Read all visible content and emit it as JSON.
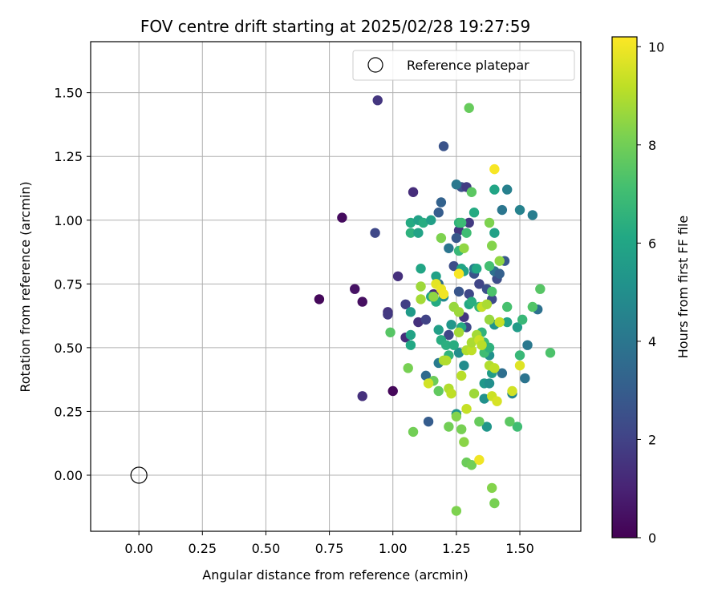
{
  "chart_data": {
    "type": "scatter",
    "title": "FOV centre drift starting at 2025/02/28 19:27:59",
    "xlabel": "Angular distance from reference (arcmin)",
    "ylabel": "Rotation from reference (arcmin)",
    "xlim": [
      -0.19,
      1.74
    ],
    "ylim": [
      -0.22,
      1.7
    ],
    "xticks": [
      "0.00",
      "0.25",
      "0.50",
      "0.75",
      "1.00",
      "1.25",
      "1.50"
    ],
    "yticks": [
      "0.00",
      "0.25",
      "0.50",
      "0.75",
      "1.00",
      "1.25",
      "1.50"
    ],
    "grid": true,
    "colormap": "viridis",
    "colorbar": {
      "label": "Hours from first FF file",
      "range": [
        0,
        10.2
      ],
      "ticks": [
        "0",
        "2",
        "4",
        "6",
        "8",
        "10"
      ]
    },
    "legend": {
      "position": "top-right",
      "entries": [
        "Reference platepar"
      ]
    },
    "reference": {
      "x": 0.0,
      "y": 0.0
    },
    "points": [
      {
        "x": 0.71,
        "y": 0.69,
        "c": 0.2
      },
      {
        "x": 0.8,
        "y": 1.01,
        "c": 0.3
      },
      {
        "x": 0.85,
        "y": 0.73,
        "c": 0.5
      },
      {
        "x": 0.88,
        "y": 0.68,
        "c": 0.4
      },
      {
        "x": 0.88,
        "y": 0.31,
        "c": 1.4
      },
      {
        "x": 1.0,
        "y": 0.33,
        "c": 0.2
      },
      {
        "x": 0.93,
        "y": 0.95,
        "c": 2.2
      },
      {
        "x": 0.94,
        "y": 1.47,
        "c": 1.6
      },
      {
        "x": 0.98,
        "y": 0.64,
        "c": 1.5
      },
      {
        "x": 0.98,
        "y": 0.63,
        "c": 1.7
      },
      {
        "x": 1.02,
        "y": 0.78,
        "c": 1.4
      },
      {
        "x": 1.05,
        "y": 0.54,
        "c": 1.3
      },
      {
        "x": 1.05,
        "y": 0.67,
        "c": 1.9
      },
      {
        "x": 1.08,
        "y": 1.11,
        "c": 1.3
      },
      {
        "x": 1.1,
        "y": 0.6,
        "c": 1.4
      },
      {
        "x": 1.13,
        "y": 0.61,
        "c": 2.0
      },
      {
        "x": 1.16,
        "y": 0.71,
        "c": 1.2
      },
      {
        "x": 1.2,
        "y": 1.29,
        "c": 2.6
      },
      {
        "x": 1.22,
        "y": 0.55,
        "c": 2.1
      },
      {
        "x": 1.24,
        "y": 0.82,
        "c": 2.4
      },
      {
        "x": 1.26,
        "y": 0.96,
        "c": 1.6
      },
      {
        "x": 1.27,
        "y": 1.13,
        "c": 2.5
      },
      {
        "x": 1.29,
        "y": 1.13,
        "c": 1.8
      },
      {
        "x": 1.3,
        "y": 0.99,
        "c": 1.7
      },
      {
        "x": 1.25,
        "y": 0.93,
        "c": 2.8
      },
      {
        "x": 1.26,
        "y": 0.72,
        "c": 2.7
      },
      {
        "x": 1.29,
        "y": 0.58,
        "c": 2.3
      },
      {
        "x": 1.28,
        "y": 0.62,
        "c": 1.6
      },
      {
        "x": 1.3,
        "y": 0.71,
        "c": 2.2
      },
      {
        "x": 1.32,
        "y": 0.79,
        "c": 2.6
      },
      {
        "x": 1.34,
        "y": 0.75,
        "c": 2.1
      },
      {
        "x": 1.37,
        "y": 0.73,
        "c": 2.5
      },
      {
        "x": 1.39,
        "y": 0.69,
        "c": 2.3
      },
      {
        "x": 1.41,
        "y": 0.77,
        "c": 2.4
      },
      {
        "x": 1.44,
        "y": 0.84,
        "c": 2.8
      },
      {
        "x": 1.14,
        "y": 0.21,
        "c": 3.0
      },
      {
        "x": 1.19,
        "y": 1.07,
        "c": 3.2
      },
      {
        "x": 1.18,
        "y": 1.03,
        "c": 3.0
      },
      {
        "x": 1.18,
        "y": 0.75,
        "c": 3.6
      },
      {
        "x": 1.22,
        "y": 0.89,
        "c": 4.0
      },
      {
        "x": 1.25,
        "y": 1.14,
        "c": 4.1
      },
      {
        "x": 1.32,
        "y": 0.81,
        "c": 4.2
      },
      {
        "x": 1.4,
        "y": 0.8,
        "c": 3.8
      },
      {
        "x": 1.42,
        "y": 0.79,
        "c": 3.1
      },
      {
        "x": 1.43,
        "y": 1.04,
        "c": 4.0
      },
      {
        "x": 1.45,
        "y": 1.12,
        "c": 4.4
      },
      {
        "x": 1.43,
        "y": 0.4,
        "c": 3.7
      },
      {
        "x": 1.47,
        "y": 0.32,
        "c": 4.6
      },
      {
        "x": 1.5,
        "y": 1.04,
        "c": 4.5
      },
      {
        "x": 1.53,
        "y": 0.51,
        "c": 4.1
      },
      {
        "x": 1.52,
        "y": 0.38,
        "c": 3.9
      },
      {
        "x": 1.55,
        "y": 1.02,
        "c": 4.3
      },
      {
        "x": 1.57,
        "y": 0.65,
        "c": 3.8
      },
      {
        "x": 1.13,
        "y": 0.39,
        "c": 3.5
      },
      {
        "x": 1.18,
        "y": 0.44,
        "c": 4.2
      },
      {
        "x": 1.2,
        "y": 0.7,
        "c": 4.8
      },
      {
        "x": 1.23,
        "y": 0.59,
        "c": 5.3
      },
      {
        "x": 1.26,
        "y": 0.48,
        "c": 5.0
      },
      {
        "x": 1.28,
        "y": 0.43,
        "c": 4.9
      },
      {
        "x": 1.25,
        "y": 0.24,
        "c": 5.2
      },
      {
        "x": 1.36,
        "y": 0.36,
        "c": 5.4
      },
      {
        "x": 1.38,
        "y": 0.36,
        "c": 5.0
      },
      {
        "x": 1.36,
        "y": 0.3,
        "c": 5.1
      },
      {
        "x": 1.37,
        "y": 0.19,
        "c": 5.3
      },
      {
        "x": 1.39,
        "y": 0.4,
        "c": 5.6
      },
      {
        "x": 1.38,
        "y": 0.47,
        "c": 5.1
      },
      {
        "x": 1.4,
        "y": 0.59,
        "c": 5.2
      },
      {
        "x": 1.4,
        "y": 0.95,
        "c": 5.8
      },
      {
        "x": 1.4,
        "y": 1.12,
        "c": 6.0
      },
      {
        "x": 1.45,
        "y": 0.6,
        "c": 5.9
      },
      {
        "x": 1.49,
        "y": 0.58,
        "c": 5.6
      },
      {
        "x": 1.5,
        "y": 0.47,
        "c": 6.8
      },
      {
        "x": 1.07,
        "y": 0.99,
        "c": 6.2
      },
      {
        "x": 1.07,
        "y": 0.95,
        "c": 6.5
      },
      {
        "x": 1.1,
        "y": 1.0,
        "c": 5.8
      },
      {
        "x": 1.1,
        "y": 0.95,
        "c": 5.9
      },
      {
        "x": 1.11,
        "y": 0.81,
        "c": 6.0
      },
      {
        "x": 1.12,
        "y": 0.99,
        "c": 6.3
      },
      {
        "x": 1.15,
        "y": 1.0,
        "c": 5.7
      },
      {
        "x": 1.07,
        "y": 0.64,
        "c": 5.5
      },
      {
        "x": 1.07,
        "y": 0.55,
        "c": 5.9
      },
      {
        "x": 1.07,
        "y": 0.51,
        "c": 6.1
      },
      {
        "x": 1.15,
        "y": 0.7,
        "c": 6.0
      },
      {
        "x": 1.17,
        "y": 0.78,
        "c": 5.8
      },
      {
        "x": 1.17,
        "y": 0.68,
        "c": 6.2
      },
      {
        "x": 1.18,
        "y": 0.57,
        "c": 5.7
      },
      {
        "x": 1.19,
        "y": 0.53,
        "c": 6.3
      },
      {
        "x": 1.21,
        "y": 0.51,
        "c": 6.4
      },
      {
        "x": 1.22,
        "y": 0.47,
        "c": 6.6
      },
      {
        "x": 1.24,
        "y": 0.51,
        "c": 6.3
      },
      {
        "x": 1.27,
        "y": 0.81,
        "c": 6.0
      },
      {
        "x": 1.27,
        "y": 0.58,
        "c": 6.2
      },
      {
        "x": 1.28,
        "y": 0.8,
        "c": 5.9
      },
      {
        "x": 1.3,
        "y": 0.67,
        "c": 6.1
      },
      {
        "x": 1.31,
        "y": 0.68,
        "c": 6.4
      },
      {
        "x": 1.32,
        "y": 1.03,
        "c": 6.2
      },
      {
        "x": 1.33,
        "y": 0.81,
        "c": 6.1
      },
      {
        "x": 1.26,
        "y": 0.99,
        "c": 6.6
      },
      {
        "x": 1.27,
        "y": 0.99,
        "c": 6.9
      },
      {
        "x": 1.29,
        "y": 0.95,
        "c": 7.0
      },
      {
        "x": 1.26,
        "y": 0.88,
        "c": 6.8
      },
      {
        "x": 1.34,
        "y": 0.66,
        "c": 6.7
      },
      {
        "x": 1.35,
        "y": 0.56,
        "c": 6.6
      },
      {
        "x": 1.36,
        "y": 0.52,
        "c": 6.9
      },
      {
        "x": 1.36,
        "y": 0.48,
        "c": 7.0
      },
      {
        "x": 1.38,
        "y": 0.5,
        "c": 6.5
      },
      {
        "x": 1.38,
        "y": 0.82,
        "c": 7.1
      },
      {
        "x": 1.39,
        "y": 0.72,
        "c": 7.3
      },
      {
        "x": 1.45,
        "y": 0.66,
        "c": 7.2
      },
      {
        "x": 1.49,
        "y": 0.19,
        "c": 7.0
      },
      {
        "x": 1.51,
        "y": 0.61,
        "c": 6.8
      },
      {
        "x": 1.55,
        "y": 0.66,
        "c": 7.4
      },
      {
        "x": 1.58,
        "y": 0.73,
        "c": 7.5
      },
      {
        "x": 1.62,
        "y": 0.48,
        "c": 7.3
      },
      {
        "x": 1.46,
        "y": 0.21,
        "c": 7.6
      },
      {
        "x": 1.34,
        "y": 0.21,
        "c": 7.8
      },
      {
        "x": 0.99,
        "y": 0.56,
        "c": 7.5
      },
      {
        "x": 1.08,
        "y": 0.17,
        "c": 8.0
      },
      {
        "x": 1.06,
        "y": 0.42,
        "c": 8.1
      },
      {
        "x": 1.16,
        "y": 0.37,
        "c": 7.9
      },
      {
        "x": 1.18,
        "y": 0.33,
        "c": 7.7
      },
      {
        "x": 1.19,
        "y": 0.93,
        "c": 8.2
      },
      {
        "x": 1.22,
        "y": 0.19,
        "c": 8.0
      },
      {
        "x": 1.25,
        "y": 0.23,
        "c": 8.3
      },
      {
        "x": 1.27,
        "y": 0.18,
        "c": 8.1
      },
      {
        "x": 1.28,
        "y": 0.13,
        "c": 8.4
      },
      {
        "x": 1.29,
        "y": 0.05,
        "c": 7.9
      },
      {
        "x": 1.31,
        "y": 0.04,
        "c": 8.0
      },
      {
        "x": 1.25,
        "y": -0.14,
        "c": 8.2
      },
      {
        "x": 1.39,
        "y": -0.05,
        "c": 8.3
      },
      {
        "x": 1.4,
        "y": -0.11,
        "c": 8.1
      },
      {
        "x": 1.3,
        "y": 1.44,
        "c": 7.8
      },
      {
        "x": 1.31,
        "y": 1.11,
        "c": 7.6
      },
      {
        "x": 1.28,
        "y": 0.89,
        "c": 8.5
      },
      {
        "x": 1.38,
        "y": 0.99,
        "c": 8.2
      },
      {
        "x": 1.39,
        "y": 0.9,
        "c": 8.3
      },
      {
        "x": 1.42,
        "y": 0.84,
        "c": 8.5
      },
      {
        "x": 1.38,
        "y": 0.61,
        "c": 8.6
      },
      {
        "x": 1.42,
        "y": 0.6,
        "c": 8.4
      },
      {
        "x": 1.11,
        "y": 0.74,
        "c": 8.7
      },
      {
        "x": 1.11,
        "y": 0.69,
        "c": 8.8
      },
      {
        "x": 1.16,
        "y": 0.7,
        "c": 8.5
      },
      {
        "x": 1.2,
        "y": 0.45,
        "c": 8.9
      },
      {
        "x": 1.21,
        "y": 0.45,
        "c": 9.0
      },
      {
        "x": 1.24,
        "y": 0.66,
        "c": 8.6
      },
      {
        "x": 1.26,
        "y": 0.56,
        "c": 8.8
      },
      {
        "x": 1.26,
        "y": 0.64,
        "c": 8.7
      },
      {
        "x": 1.27,
        "y": 0.39,
        "c": 9.1
      },
      {
        "x": 1.29,
        "y": 0.49,
        "c": 9.0
      },
      {
        "x": 1.29,
        "y": 0.26,
        "c": 9.3
      },
      {
        "x": 1.31,
        "y": 0.49,
        "c": 9.2
      },
      {
        "x": 1.31,
        "y": 0.52,
        "c": 8.9
      },
      {
        "x": 1.32,
        "y": 0.32,
        "c": 8.7
      },
      {
        "x": 1.33,
        "y": 0.55,
        "c": 8.8
      },
      {
        "x": 1.34,
        "y": 0.53,
        "c": 9.4
      },
      {
        "x": 1.35,
        "y": 0.51,
        "c": 9.1
      },
      {
        "x": 1.35,
        "y": 0.66,
        "c": 9.3
      },
      {
        "x": 1.37,
        "y": 0.67,
        "c": 8.9
      },
      {
        "x": 1.38,
        "y": 0.43,
        "c": 9.0
      },
      {
        "x": 1.4,
        "y": 0.42,
        "c": 9.2
      },
      {
        "x": 1.39,
        "y": 0.31,
        "c": 9.4
      },
      {
        "x": 1.47,
        "y": 0.33,
        "c": 9.5
      },
      {
        "x": 1.41,
        "y": 0.29,
        "c": 9.6
      },
      {
        "x": 1.42,
        "y": 0.6,
        "c": 9.3
      },
      {
        "x": 1.5,
        "y": 0.43,
        "c": 9.7
      },
      {
        "x": 1.22,
        "y": 0.34,
        "c": 9.0
      },
      {
        "x": 1.23,
        "y": 0.32,
        "c": 9.2
      },
      {
        "x": 1.14,
        "y": 0.36,
        "c": 9.5
      },
      {
        "x": 1.17,
        "y": 0.75,
        "c": 9.8
      },
      {
        "x": 1.19,
        "y": 0.73,
        "c": 9.9
      },
      {
        "x": 1.2,
        "y": 0.71,
        "c": 10.0
      },
      {
        "x": 1.26,
        "y": 0.79,
        "c": 10.1
      },
      {
        "x": 1.34,
        "y": 0.06,
        "c": 10.0
      },
      {
        "x": 1.4,
        "y": 1.2,
        "c": 10.1
      }
    ]
  }
}
